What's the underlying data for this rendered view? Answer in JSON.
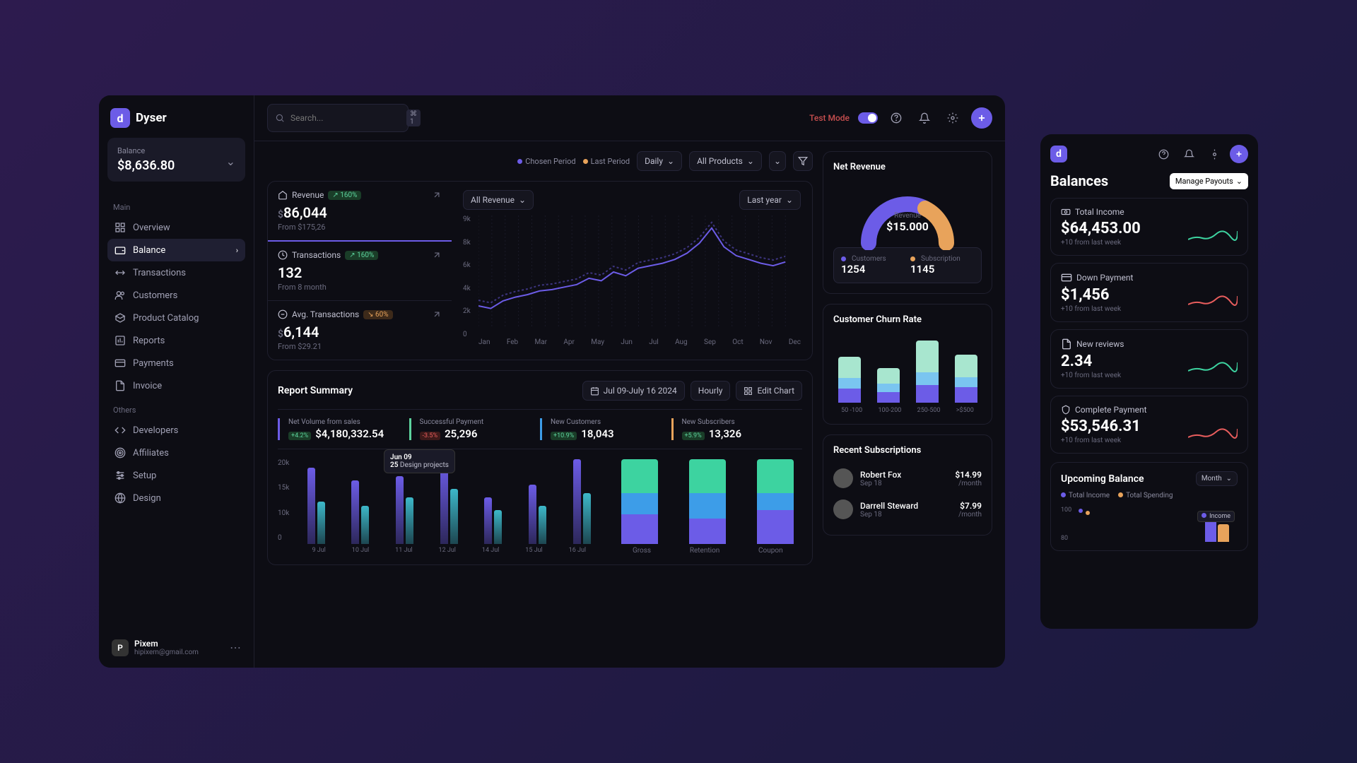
{
  "brand": {
    "name": "Dyser",
    "logo_letter": "d"
  },
  "sidebar": {
    "balance_label": "Balance",
    "balance_value": "$8,636.80",
    "sections": {
      "main": {
        "label": "Main",
        "items": [
          {
            "label": "Overview",
            "icon": "grid"
          },
          {
            "label": "Balance",
            "icon": "wallet",
            "active": true
          },
          {
            "label": "Transactions",
            "icon": "swap"
          },
          {
            "label": "Customers",
            "icon": "users"
          },
          {
            "label": "Product Catalog",
            "icon": "box"
          },
          {
            "label": "Reports",
            "icon": "chart"
          },
          {
            "label": "Payments",
            "icon": "card"
          },
          {
            "label": "Invoice",
            "icon": "file"
          }
        ]
      },
      "others": {
        "label": "Others",
        "items": [
          {
            "label": "Developers",
            "icon": "code"
          },
          {
            "label": "Affiliates",
            "icon": "target"
          },
          {
            "label": "Setup",
            "icon": "sliders"
          },
          {
            "label": "Design",
            "icon": "globe"
          }
        ]
      }
    },
    "user": {
      "name": "Pixem",
      "email": "hipixem@gmail.com",
      "avatar_letter": "P"
    }
  },
  "topbar": {
    "search_placeholder": "Search...",
    "kbd": "⌘ 1",
    "test_mode": "Test Mode"
  },
  "filters": {
    "legend": [
      {
        "label": "Chosen Period",
        "color": "#6c5ce7"
      },
      {
        "label": "Last Period",
        "color": "#e8a35b"
      }
    ],
    "daily": "Daily",
    "products": "All Products"
  },
  "stats": [
    {
      "title": "Revenue",
      "badge": "↗ 160%",
      "badge_type": "pos",
      "prefix": "$",
      "value": "86,044",
      "sub": "From $175,26"
    },
    {
      "title": "Transactions",
      "badge": "↗ 160%",
      "badge_type": "pos",
      "prefix": "",
      "value": "132",
      "sub": "From 8 month"
    },
    {
      "title": "Avg. Transactions",
      "badge": "↘ 60%",
      "badge_type": "neg",
      "prefix": "$",
      "value": "6,144",
      "sub": "From $29.21"
    }
  ],
  "chart_main": {
    "all_revenue": "All Revenue",
    "last_year": "Last year",
    "y_labels": [
      "9k",
      "8k",
      "6k",
      "4k",
      "2k",
      "0"
    ],
    "x_labels": [
      "Jan",
      "Feb",
      "Mar",
      "Apr",
      "May",
      "Jun",
      "Jul",
      "Aug",
      "Sep",
      "Oct",
      "Nov",
      "Dec"
    ],
    "line_color": "#6c5ce7",
    "points": [
      1.8,
      1.6,
      2.2,
      2.5,
      2.7,
      3.0,
      3.1,
      3.3,
      3.5,
      4.0,
      3.8,
      4.5,
      4.2,
      4.8,
      5.0,
      5.2,
      5.5,
      6.0,
      6.8,
      8.0,
      6.5,
      5.8,
      5.5,
      5.2,
      5.0,
      5.3
    ],
    "y_max": 9
  },
  "report": {
    "title": "Report Summary",
    "date_range": "Jul 09-July 16 2024",
    "hourly": "Hourly",
    "edit": "Edit Chart",
    "kpis": [
      {
        "label": "Net Volume from sales",
        "badge": "+4.2%",
        "badge_type": "pos",
        "value": "$4,180,332.54"
      },
      {
        "label": "Successful Payment",
        "badge": "-3.5%",
        "badge_type": "neg",
        "value": "25,296"
      },
      {
        "label": "New Customers",
        "badge": "+10.9%",
        "badge_type": "pos",
        "value": "18,043"
      },
      {
        "label": "New Subscribers",
        "badge": "+5.9%",
        "badge_type": "pos",
        "value": "13,326"
      }
    ],
    "bar_chart": {
      "y_labels": [
        "20k",
        "15k",
        "10k",
        "0"
      ],
      "x_labels": [
        "9 Jul",
        "10 Jul",
        "11 Jul",
        "12 Jul",
        "14 Jul",
        "15 Jul",
        "16 Jul"
      ],
      "colors": [
        "#6c5ce7",
        "#3db8c9"
      ],
      "pairs": [
        [
          18,
          10
        ],
        [
          15,
          9
        ],
        [
          16,
          11
        ],
        [
          19,
          13
        ],
        [
          11,
          8
        ],
        [
          14,
          9
        ],
        [
          20,
          12
        ]
      ],
      "y_max": 20,
      "tooltip": {
        "date": "Jun 09",
        "val": "25",
        "label": "Design projects"
      }
    },
    "stack_chart": {
      "x_labels": [
        "Gross",
        "Retention",
        "Coupon"
      ],
      "colors": [
        "#6c5ce7",
        "#3d9de8",
        "#3dd3a0"
      ],
      "bars": [
        [
          35,
          25,
          40
        ],
        [
          30,
          30,
          40
        ],
        [
          40,
          20,
          40
        ]
      ],
      "y_max": 100
    }
  },
  "net_revenue": {
    "title": "Net Revenue",
    "label": "Revenue",
    "value": "$15.000",
    "arc_colors": [
      "#6c5ce7",
      "#e8a35b"
    ],
    "arc_values": [
      0.65,
      0.35
    ],
    "stats": [
      {
        "label": "Customers",
        "value": "1254",
        "color": "#6c5ce7"
      },
      {
        "label": "Subscription",
        "value": "1145",
        "color": "#e8a35b"
      }
    ]
  },
  "churn": {
    "title": "Customer Churn Rate",
    "x_labels": [
      "50 -100",
      "100-200",
      "250-500",
      ">$500"
    ],
    "colors": [
      "#6c5ce7",
      "#7ac5f0",
      "#a8e6cf"
    ],
    "bars": [
      [
        20,
        15,
        30
      ],
      [
        15,
        12,
        22
      ],
      [
        25,
        18,
        45
      ],
      [
        22,
        14,
        32
      ]
    ],
    "y_max": 100
  },
  "subs": {
    "title": "Recent Subscriptions",
    "items": [
      {
        "name": "Robert Fox",
        "date": "Sep 18",
        "price": "$14.99",
        "unit": "/month"
      },
      {
        "name": "Darrell Steward",
        "date": "Sep 18",
        "price": "$7.99",
        "unit": "/month"
      }
    ]
  },
  "mobile": {
    "title": "Balances",
    "manage": "Manage Payouts",
    "cards": [
      {
        "label": "Total Income",
        "value": "$64,453.00",
        "sub": "+10 from last week",
        "spark_color": "#3dd3a0"
      },
      {
        "label": "Down Payment",
        "value": "$1,456",
        "sub": "+10 from last week",
        "spark_color": "#e85d5d"
      },
      {
        "label": "New reviews",
        "value": "2.34",
        "sub": "+10 from last week",
        "spark_color": "#3dd3a0"
      },
      {
        "label": "Complete Payment",
        "value": "$53,546.31",
        "sub": "+10 from last week",
        "spark_color": "#e85d5d"
      }
    ],
    "upcoming": {
      "title": "Upcoming Balance",
      "month": "Month",
      "legend": [
        {
          "label": "Total Income",
          "color": "#6c5ce7"
        },
        {
          "label": "Total Spending",
          "color": "#e8a35b"
        }
      ],
      "y_labels": [
        "100",
        "80"
      ],
      "tooltip": "Income"
    }
  }
}
